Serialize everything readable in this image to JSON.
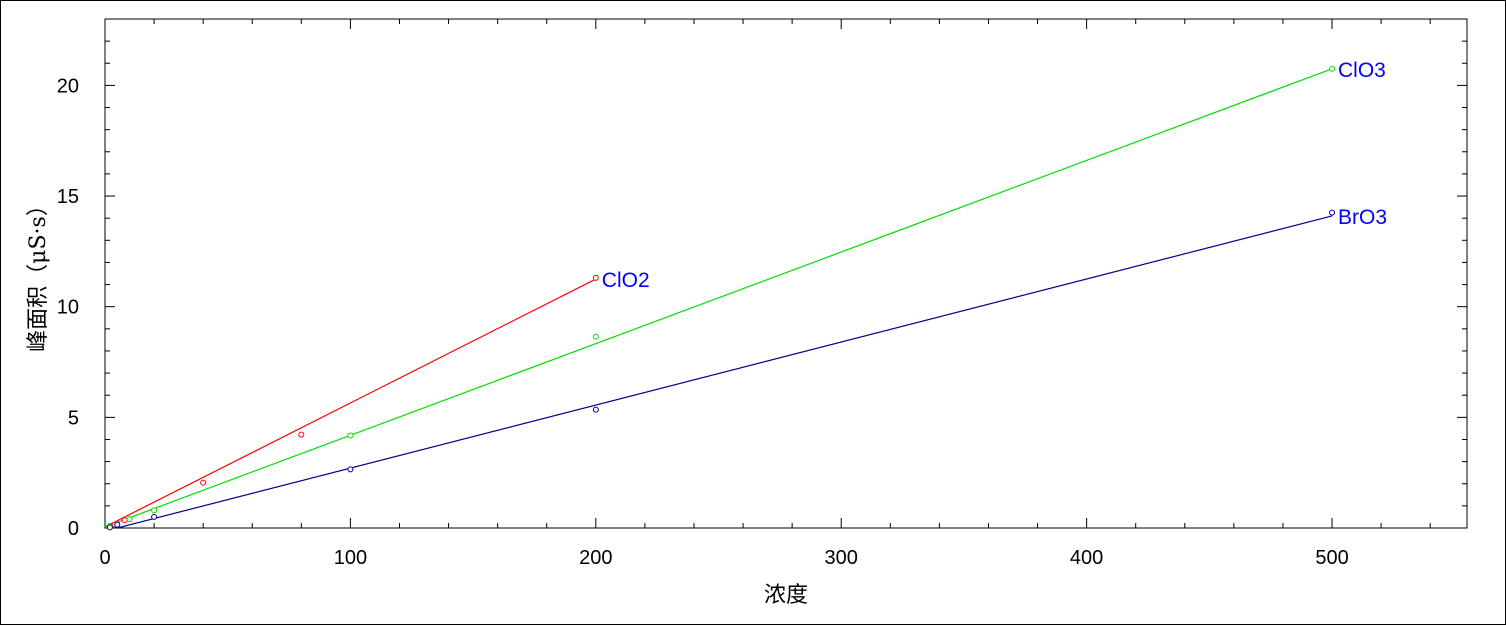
{
  "chart_data": {
    "type": "scatter",
    "title": "",
    "xlabel": "浓度",
    "ylabel": "峰面积（μS·s）",
    "xlim": [
      0,
      555
    ],
    "ylim": [
      0,
      23
    ],
    "x_ticks": [
      0,
      100,
      200,
      300,
      400,
      500
    ],
    "y_ticks": [
      0,
      5,
      10,
      15,
      20
    ],
    "grid": false,
    "series": [
      {
        "name": "ClO2",
        "color": "#ff0000",
        "points": [
          [
            2,
            0.08
          ],
          [
            4,
            0.15
          ],
          [
            8,
            0.35
          ],
          [
            40,
            2.05
          ],
          [
            80,
            4.22
          ],
          [
            200,
            11.3
          ]
        ],
        "fit": [
          [
            0,
            0.05
          ],
          [
            200,
            11.25
          ]
        ]
      },
      {
        "name": "ClO3",
        "color": "#00dd00",
        "points": [
          [
            2,
            0.06
          ],
          [
            5,
            0.18
          ],
          [
            10,
            0.4
          ],
          [
            20,
            0.8
          ],
          [
            100,
            4.18
          ],
          [
            200,
            8.65
          ],
          [
            500,
            20.75
          ]
        ],
        "fit": [
          [
            0,
            0.05
          ],
          [
            500,
            20.75
          ]
        ]
      },
      {
        "name": "BrO3",
        "color": "#00008b",
        "points": [
          [
            2,
            0.03
          ],
          [
            5,
            0.15
          ],
          [
            20,
            0.5
          ],
          [
            100,
            2.65
          ],
          [
            200,
            5.35
          ],
          [
            500,
            14.25
          ]
        ],
        "fit": [
          [
            5,
            0.0
          ],
          [
            500,
            14.1
          ]
        ]
      }
    ],
    "label_color": "#0000ff"
  }
}
